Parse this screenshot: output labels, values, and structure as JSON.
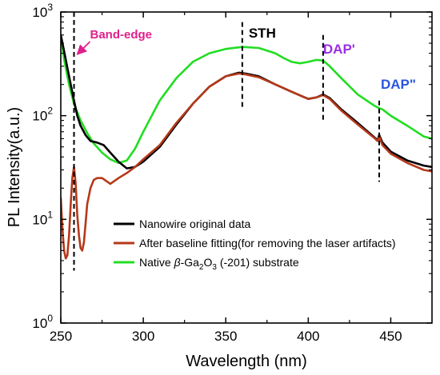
{
  "chart_data": {
    "type": "line",
    "xlabel": "Wavelength (nm)",
    "ylabel": "PL Intensity(a.u.)",
    "xlim": [
      250,
      475
    ],
    "ylim": [
      1,
      1000
    ],
    "yscale": "log",
    "x_ticks": [
      250,
      300,
      350,
      400,
      450
    ],
    "x_tick_labels": [
      "250",
      "300",
      "350",
      "400",
      "450"
    ],
    "y_ticks": [
      1,
      10,
      100,
      1000
    ],
    "y_tick_labels": [
      {
        "base": "10",
        "exp": "0"
      },
      {
        "base": "10",
        "exp": "1"
      },
      {
        "base": "10",
        "exp": "2"
      },
      {
        "base": "10",
        "exp": "3"
      }
    ],
    "legend_position": "bottom-center",
    "legend": [
      {
        "label": "Nanowire original data",
        "color": "#000000"
      },
      {
        "label": "After baseline fitting(for removing the laser artifacts)",
        "color": "#b5391a"
      },
      {
        "label_parts": [
          "Native ",
          "β",
          "-Ga",
          "2",
          "O",
          "3",
          " (-201) substrate"
        ],
        "color": "#22dd22"
      }
    ],
    "series": [
      {
        "key": "nanowire",
        "color": "#000000",
        "x": [
          250,
          252,
          254,
          256,
          258,
          260,
          262,
          265,
          268,
          272,
          276,
          280,
          285,
          290,
          295,
          300,
          310,
          320,
          330,
          340,
          350,
          358,
          362,
          370,
          380,
          390,
          400,
          405,
          409,
          413,
          420,
          430,
          440,
          442,
          443,
          445,
          450,
          460,
          470,
          475
        ],
        "y": [
          600,
          420,
          290,
          200,
          140,
          100,
          80,
          65,
          57,
          55,
          52,
          44,
          36,
          31,
          32,
          36,
          50,
          82,
          130,
          190,
          240,
          260,
          255,
          240,
          200,
          170,
          145,
          150,
          160,
          148,
          115,
          85,
          62,
          58,
          65,
          55,
          45,
          37,
          33,
          32
        ]
      },
      {
        "key": "baseline",
        "color": "#b5391a",
        "x": [
          250,
          251,
          252,
          253,
          254,
          255,
          256,
          257,
          258,
          259,
          260,
          261,
          262,
          263,
          264,
          265,
          266,
          268,
          270,
          272,
          275,
          280,
          285,
          290,
          295,
          300,
          310,
          320,
          330,
          340,
          350,
          358,
          362,
          370,
          380,
          390,
          400,
          405,
          409,
          413,
          420,
          430,
          440,
          442,
          443,
          445,
          450,
          460,
          470,
          475
        ],
        "y": [
          16,
          8,
          5,
          4.2,
          4.5,
          7,
          14,
          25,
          32,
          22,
          11,
          7,
          5.3,
          5,
          6,
          9,
          14,
          20,
          24,
          25,
          25,
          22,
          25,
          28,
          32,
          38,
          52,
          85,
          130,
          190,
          240,
          255,
          250,
          235,
          200,
          170,
          145,
          150,
          158,
          145,
          112,
          82,
          61,
          57,
          63,
          52,
          43,
          35,
          30,
          29
        ]
      },
      {
        "key": "substrate",
        "color": "#22dd22",
        "x": [
          250,
          252,
          255,
          258,
          262,
          266,
          270,
          275,
          280,
          285,
          290,
          295,
          300,
          310,
          320,
          330,
          340,
          350,
          360,
          370,
          380,
          385,
          390,
          395,
          400,
          405,
          409,
          413,
          420,
          430,
          440,
          443,
          445,
          450,
          460,
          470,
          475
        ],
        "y": [
          600,
          350,
          200,
          130,
          90,
          68,
          54,
          44,
          38,
          35,
          37,
          48,
          70,
          140,
          230,
          330,
          400,
          440,
          460,
          450,
          400,
          360,
          330,
          320,
          330,
          345,
          340,
          300,
          230,
          160,
          125,
          118,
          115,
          100,
          80,
          63,
          60
        ]
      }
    ],
    "annotations": [
      {
        "key": "band_edge",
        "text": "Band-edge",
        "x": 258,
        "y_top": 1000,
        "y_bottom": 3.2,
        "color": "#e0208a",
        "arrow": true
      },
      {
        "key": "sth",
        "text": "STH",
        "x": 360,
        "y_top": 800,
        "y_bottom": 120,
        "color": "#000000"
      },
      {
        "key": "dap1",
        "text": "DAP'",
        "x": 409,
        "y_top": 600,
        "y_bottom": 90,
        "color": "#9a2ee6"
      },
      {
        "key": "dap2",
        "text": "DAP\"",
        "x": 443,
        "y_top": 140,
        "y_bottom": 23,
        "color": "#2a55e0"
      }
    ]
  }
}
